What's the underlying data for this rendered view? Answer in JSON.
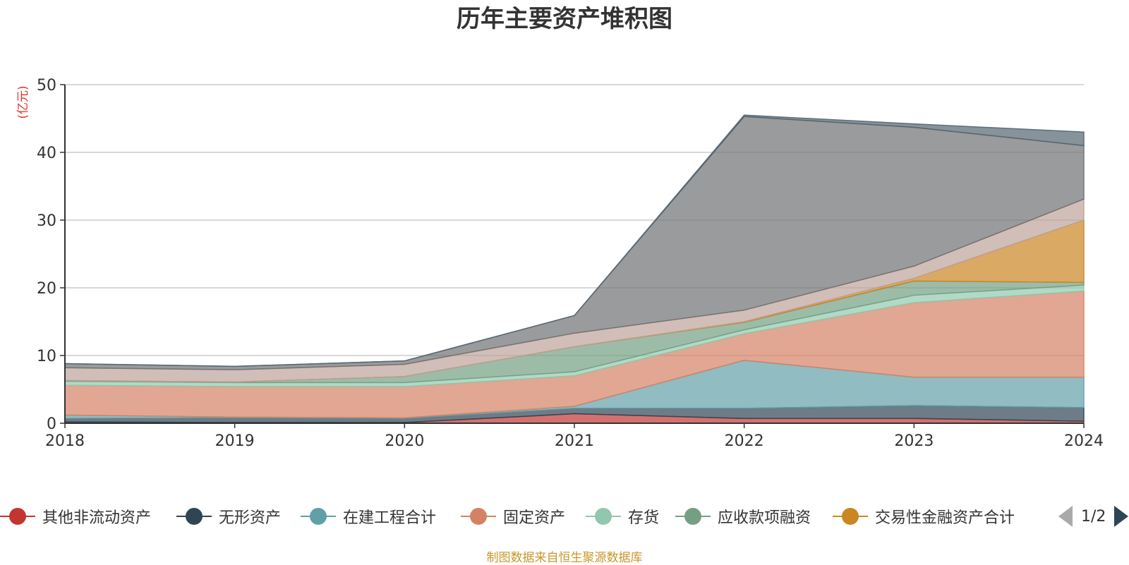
{
  "chart_data": {
    "type": "area",
    "stacked": true,
    "title": "历年主要资产堆积图",
    "ylabel": "(亿元)",
    "xlabel": "",
    "categories": [
      "2018",
      "2019",
      "2020",
      "2021",
      "2022",
      "2023",
      "2024"
    ],
    "ylim": [
      0,
      50
    ],
    "yticks": [
      0,
      10,
      20,
      30,
      40,
      50
    ],
    "grid": true,
    "legend_position": "bottom",
    "series": [
      {
        "name": "其他非流动资产",
        "color": "#c23531",
        "values": [
          0.2,
          0.1,
          0.1,
          1.4,
          0.7,
          0.7,
          0.3
        ]
      },
      {
        "name": "无形资产",
        "color": "#2f4554",
        "values": [
          0.5,
          0.7,
          0.6,
          0.8,
          1.5,
          1.9,
          2.0
        ]
      },
      {
        "name": "在建工程合计",
        "color": "#61a0a8",
        "values": [
          0.5,
          0.1,
          0.1,
          0.3,
          7.1,
          4.2,
          4.5
        ]
      },
      {
        "name": "固定资产",
        "color": "#d48265",
        "values": [
          4.4,
          4.5,
          4.6,
          4.5,
          3.9,
          11.0,
          12.7
        ]
      },
      {
        "name": "存货",
        "color": "#91c7ae",
        "values": [
          0.6,
          0.6,
          0.6,
          0.6,
          0.6,
          1.1,
          0.9
        ]
      },
      {
        "name": "应收款项融资",
        "color": "#749f83",
        "values": [
          0.1,
          0.1,
          0.9,
          3.7,
          1.1,
          2.1,
          0.4
        ]
      },
      {
        "name": "交易性金融资产合计",
        "color": "#ca8622",
        "values": [
          0,
          0,
          0,
          0,
          0.1,
          0.4,
          9.2
        ]
      },
      {
        "name": "",
        "color": "#bda29a",
        "values": [
          1.9,
          1.8,
          1.8,
          2.0,
          1.7,
          1.8,
          3.1
        ]
      },
      {
        "name": "",
        "color": "#6e7074",
        "values": [
          0.6,
          0.5,
          0.5,
          2.6,
          28.6,
          20.5,
          7.9
        ]
      },
      {
        "name": "",
        "color": "#546570",
        "values": [
          0,
          0,
          0,
          0,
          0.2,
          0.5,
          2.0
        ]
      }
    ]
  },
  "legend": {
    "page_text": "1/2",
    "prev_icon": "triangle-left-icon",
    "next_icon": "triangle-right-icon"
  },
  "footer": {
    "source": "制图数据来自恒生聚源数据库"
  }
}
